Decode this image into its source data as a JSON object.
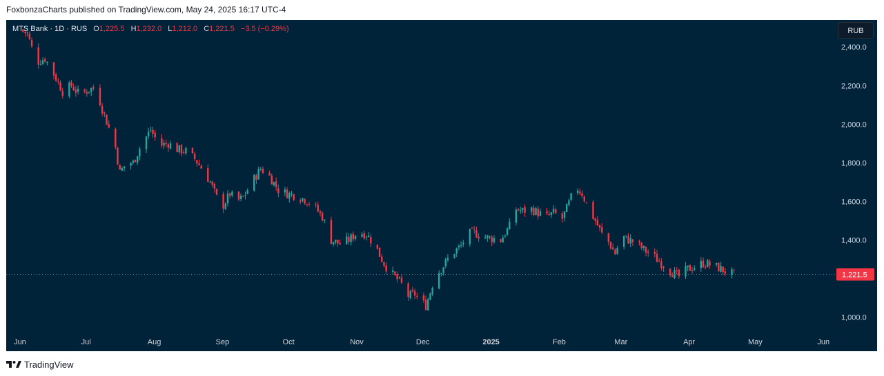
{
  "header": {
    "publisher_line": "FoxbonzaCharts published on TradingView.com, May 24, 2025 16:17 UTC-4"
  },
  "legend": {
    "symbol": "MTS Bank · 1D · RUS",
    "open_label": "O",
    "open": "1,225.5",
    "high_label": "H",
    "high": "1,232.0",
    "low_label": "L",
    "low": "1,212.0",
    "close_label": "C",
    "close": "1,221.5",
    "change": "−3.5 (−0.29%)"
  },
  "currency_button": "RUB",
  "footer": {
    "brand": "TradingView"
  },
  "colors": {
    "up": "#26a69a",
    "down": "#f23645",
    "background": "#00233a",
    "axis_text": "#d1d4dc"
  },
  "chart_data": {
    "type": "candlestick",
    "y_axis": {
      "ticks": [
        "2,400.0",
        "2,200.0",
        "2,000.0",
        "1,800.0",
        "1,600.0",
        "1,400.0",
        "1,000.0"
      ],
      "min": 920,
      "max": 2540
    },
    "x_axis": {
      "ticks": [
        "Jun",
        "Jul",
        "Aug",
        "Sep",
        "Oct",
        "Nov",
        "Dec",
        "2025",
        "Feb",
        "Mar",
        "Apr",
        "May",
        "Jun"
      ]
    },
    "last_price_label": "1,221.5",
    "last_price": 1221.5,
    "price_path": [
      [
        "2024-06-01",
        2490
      ],
      [
        "2024-06-05",
        2470
      ],
      [
        "2024-06-09",
        2320
      ],
      [
        "2024-06-13",
        2340
      ],
      [
        "2024-06-17",
        2260
      ],
      [
        "2024-06-21",
        2170
      ],
      [
        "2024-06-25",
        2200
      ],
      [
        "2024-06-29",
        2150
      ],
      [
        "2024-07-03",
        2180
      ],
      [
        "2024-07-06",
        2190
      ],
      [
        "2024-07-09",
        2080
      ],
      [
        "2024-07-12",
        1980
      ],
      [
        "2024-07-15",
        1880
      ],
      [
        "2024-07-17",
        1750
      ],
      [
        "2024-07-20",
        1800
      ],
      [
        "2024-07-23",
        1800
      ],
      [
        "2024-07-27",
        1900
      ],
      [
        "2024-07-31",
        1970
      ],
      [
        "2024-08-04",
        1890
      ],
      [
        "2024-08-08",
        1900
      ],
      [
        "2024-08-12",
        1870
      ],
      [
        "2024-08-16",
        1860
      ],
      [
        "2024-08-20",
        1820
      ],
      [
        "2024-08-24",
        1760
      ],
      [
        "2024-08-27",
        1700
      ],
      [
        "2024-08-30",
        1620
      ],
      [
        "2024-09-02",
        1580
      ],
      [
        "2024-09-05",
        1640
      ],
      [
        "2024-09-08",
        1600
      ],
      [
        "2024-09-11",
        1620
      ],
      [
        "2024-09-15",
        1700
      ],
      [
        "2024-09-19",
        1770
      ],
      [
        "2024-09-23",
        1730
      ],
      [
        "2024-09-27",
        1660
      ],
      [
        "2024-10-01",
        1640
      ],
      [
        "2024-10-05",
        1630
      ],
      [
        "2024-10-09",
        1610
      ],
      [
        "2024-10-13",
        1580
      ],
      [
        "2024-10-17",
        1520
      ],
      [
        "2024-10-21",
        1400
      ],
      [
        "2024-10-25",
        1380
      ],
      [
        "2024-10-29",
        1400
      ],
      [
        "2024-11-02",
        1440
      ],
      [
        "2024-11-06",
        1430
      ],
      [
        "2024-11-10",
        1370
      ],
      [
        "2024-11-13",
        1300
      ],
      [
        "2024-11-16",
        1240
      ],
      [
        "2024-11-19",
        1210
      ],
      [
        "2024-11-22",
        1170
      ],
      [
        "2024-11-25",
        1110
      ],
      [
        "2024-11-28",
        1120
      ],
      [
        "2024-12-01",
        1080
      ],
      [
        "2024-12-03",
        1060
      ],
      [
        "2024-12-05",
        1130
      ],
      [
        "2024-12-07",
        1210
      ],
      [
        "2024-12-10",
        1250
      ],
      [
        "2024-12-13",
        1300
      ],
      [
        "2024-12-16",
        1340
      ],
      [
        "2024-12-19",
        1370
      ],
      [
        "2024-12-22",
        1430
      ],
      [
        "2024-12-25",
        1440
      ],
      [
        "2024-12-28",
        1420
      ],
      [
        "2025-01-01",
        1410
      ],
      [
        "2025-01-06",
        1400
      ],
      [
        "2025-01-10",
        1470
      ],
      [
        "2025-01-13",
        1560
      ],
      [
        "2025-01-16",
        1550
      ],
      [
        "2025-01-20",
        1560
      ],
      [
        "2025-01-23",
        1540
      ],
      [
        "2025-01-27",
        1520
      ],
      [
        "2025-01-30",
        1540
      ],
      [
        "2025-02-03",
        1510
      ],
      [
        "2025-02-06",
        1590
      ],
      [
        "2025-02-09",
        1680
      ],
      [
        "2025-02-12",
        1640
      ],
      [
        "2025-02-15",
        1560
      ],
      [
        "2025-02-18",
        1500
      ],
      [
        "2025-02-21",
        1430
      ],
      [
        "2025-02-24",
        1390
      ],
      [
        "2025-02-27",
        1330
      ],
      [
        "2025-03-02",
        1420
      ],
      [
        "2025-03-05",
        1400
      ],
      [
        "2025-03-08",
        1390
      ],
      [
        "2025-03-12",
        1350
      ],
      [
        "2025-03-16",
        1320
      ],
      [
        "2025-03-20",
        1280
      ],
      [
        "2025-03-24",
        1240
      ],
      [
        "2025-03-28",
        1210
      ],
      [
        "2025-04-01",
        1250
      ],
      [
        "2025-04-04",
        1260
      ],
      [
        "2025-04-08",
        1280
      ],
      [
        "2025-04-12",
        1270
      ],
      [
        "2025-04-16",
        1250
      ],
      [
        "2025-04-19",
        1230
      ],
      [
        "2025-04-22",
        1221.5
      ]
    ]
  }
}
